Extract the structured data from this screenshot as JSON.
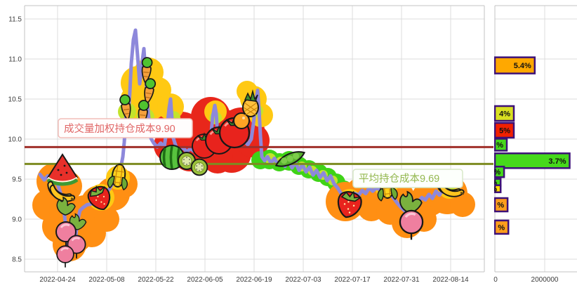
{
  "chart_data": [
    {
      "type": "line",
      "name": "holding-cost-price-line",
      "grid": true,
      "y_tick_labels": [
        "8.5",
        "9.0",
        "9.5",
        "10.0",
        "10.5",
        "11.0",
        "11.5"
      ],
      "y_tick_values": [
        8.5,
        9.0,
        9.5,
        10.0,
        10.5,
        11.0,
        11.5
      ],
      "y_range": [
        8.3,
        11.65
      ],
      "x_tick_labels": [
        "2022-04-24",
        "2022-05-08",
        "2022-05-22",
        "2022-06-05",
        "2022-06-19",
        "2022-07-03",
        "2022-07-17",
        "2022-07-31",
        "2022-08-14"
      ],
      "ref_lines": [
        {
          "name": "vwap-cost",
          "label": "成交量加权持仓成本9.90",
          "value": 9.9,
          "line_color": "#A0302A",
          "text_color": "#E06666"
        },
        {
          "name": "avg-cost",
          "label": "平均持仓成本9.69",
          "value": 9.69,
          "line_color": "#7D8B21",
          "text_color": "#94B850"
        }
      ],
      "series": [
        {
          "name": "price",
          "color": "#8D88DB",
          "points": [
            [
              57,
              9.56
            ],
            [
              63,
              9.49
            ],
            [
              68,
              9.54
            ],
            [
              74,
              9.45
            ],
            [
              79,
              9.5
            ],
            [
              84,
              9.39
            ],
            [
              88,
              9.28
            ],
            [
              92,
              9.04
            ],
            [
              95,
              8.81
            ],
            [
              98,
              8.62
            ],
            [
              101,
              8.74
            ],
            [
              104,
              8.61
            ],
            [
              107,
              8.71
            ],
            [
              110,
              8.96
            ],
            [
              114,
              9.11
            ],
            [
              119,
              9.15
            ],
            [
              124,
              9.18
            ],
            [
              130,
              9.19
            ],
            [
              136,
              9.22
            ],
            [
              142,
              9.26
            ],
            [
              149,
              9.3
            ],
            [
              156,
              9.38
            ],
            [
              162,
              9.47
            ],
            [
              169,
              9.54
            ],
            [
              172,
              9.64
            ],
            [
              175,
              9.78
            ],
            [
              177,
              9.96
            ],
            [
              179,
              10.22
            ],
            [
              181,
              10.43
            ],
            [
              183,
              10.32
            ],
            [
              185,
              10.59
            ],
            [
              187,
              10.94
            ],
            [
              190,
              11.24
            ],
            [
              193,
              11.36
            ],
            [
              196,
              11.04
            ],
            [
              199,
              10.69
            ],
            [
              202,
              10.92
            ],
            [
              205,
              11.13
            ],
            [
              207,
              10.87
            ],
            [
              209,
              10.61
            ],
            [
              211,
              10.34
            ],
            [
              213,
              10.17
            ],
            [
              215,
              10.01
            ],
            [
              219,
              9.95
            ],
            [
              224,
              9.9
            ],
            [
              229,
              9.95
            ],
            [
              234,
              9.9
            ],
            [
              238,
              10.15
            ],
            [
              241,
              10.39
            ],
            [
              243,
              10.5
            ],
            [
              245,
              10.25
            ],
            [
              247,
              10.01
            ],
            [
              251,
              9.9
            ],
            [
              256,
              9.86
            ],
            [
              261,
              9.89
            ],
            [
              266,
              9.84
            ],
            [
              271,
              9.88
            ],
            [
              276,
              9.85
            ],
            [
              281,
              9.89
            ],
            [
              286,
              9.86
            ],
            [
              291,
              9.91
            ],
            [
              296,
              9.88
            ],
            [
              300,
              10.0
            ],
            [
              303,
              10.28
            ],
            [
              306,
              10.42
            ],
            [
              308,
              10.32
            ],
            [
              310,
              10.06
            ],
            [
              313,
              9.9
            ],
            [
              318,
              9.96
            ],
            [
              323,
              9.91
            ],
            [
              328,
              9.97
            ],
            [
              333,
              9.92
            ],
            [
              338,
              9.97
            ],
            [
              343,
              9.92
            ],
            [
              348,
              9.98
            ],
            [
              353,
              9.93
            ],
            [
              358,
              10.0
            ],
            [
              361,
              10.19
            ],
            [
              364,
              10.43
            ],
            [
              367,
              10.61
            ],
            [
              369,
              10.37
            ],
            [
              371,
              10.04
            ],
            [
              373,
              9.78
            ],
            [
              377,
              9.73
            ],
            [
              381,
              9.78
            ],
            [
              386,
              9.7
            ],
            [
              391,
              9.76
            ],
            [
              396,
              9.68
            ],
            [
              401,
              9.74
            ],
            [
              406,
              9.66
            ],
            [
              411,
              9.73
            ],
            [
              416,
              9.64
            ],
            [
              421,
              9.71
            ],
            [
              426,
              9.61
            ],
            [
              431,
              9.68
            ],
            [
              436,
              9.59
            ],
            [
              441,
              9.65
            ],
            [
              446,
              9.55
            ],
            [
              451,
              9.61
            ],
            [
              456,
              9.52
            ],
            [
              461,
              9.58
            ],
            [
              466,
              9.48
            ],
            [
              471,
              9.54
            ],
            [
              476,
              9.44
            ],
            [
              481,
              9.39
            ],
            [
              486,
              9.32
            ],
            [
              491,
              9.26
            ],
            [
              496,
              9.21
            ],
            [
              501,
              9.26
            ],
            [
              506,
              9.32
            ],
            [
              511,
              9.3
            ],
            [
              516,
              9.36
            ],
            [
              521,
              9.32
            ],
            [
              526,
              9.39
            ],
            [
              531,
              9.35
            ],
            [
              536,
              9.39
            ],
            [
              541,
              9.37
            ],
            [
              546,
              9.4
            ],
            [
              551,
              9.38
            ],
            [
              556,
              9.32
            ],
            [
              561,
              9.26
            ],
            [
              566,
              9.2
            ],
            [
              571,
              9.15
            ],
            [
              576,
              9.11
            ],
            [
              581,
              9.07
            ],
            [
              586,
              9.1
            ],
            [
              591,
              9.16
            ],
            [
              596,
              9.22
            ],
            [
              601,
              9.27
            ],
            [
              606,
              9.24
            ],
            [
              611,
              9.31
            ],
            [
              616,
              9.26
            ],
            [
              621,
              9.35
            ],
            [
              626,
              9.3
            ],
            [
              631,
              9.37
            ],
            [
              635,
              9.33
            ]
          ]
        }
      ],
      "decoration_icons": [
        "watermelon-slice",
        "banana-bunch",
        "radish",
        "radish-leaves",
        "strawberry",
        "corn",
        "carrot-with-pea",
        "whole-watermelon",
        "kiwi",
        "tomato",
        "orange",
        "pineapple",
        "peapod"
      ]
    },
    {
      "type": "bar",
      "name": "volume-by-price",
      "orientation": "horizontal",
      "x_tick_labels": [
        "0",
        "2000000"
      ],
      "x_gridline_value": 2000000,
      "bars": [
        {
          "price": 10.92,
          "volume": 1600000,
          "label": "5.4%",
          "color": "#FFA800",
          "thickness": 23
        },
        {
          "price": 10.32,
          "volume": 760000,
          "label": "4%",
          "color": "#D9E021",
          "thickness": 21
        },
        {
          "price": 10.11,
          "volume": 760000,
          "label": "5%",
          "color": "#F22000",
          "thickness": 21
        },
        {
          "price": 9.93,
          "volume": 480000,
          "label": "%",
          "color": "#46D81C",
          "thickness": 17
        },
        {
          "price": 9.73,
          "volume": 3000000,
          "label": "3.7%",
          "color": "#46D81C",
          "thickness": 21
        },
        {
          "price": 9.59,
          "volume": 370000,
          "label": "%",
          "color": "#46D81C",
          "thickness": 15
        },
        {
          "price": 9.46,
          "volume": 230000,
          "label": "%",
          "color": "#46D81C",
          "thickness": 10
        },
        {
          "price": 9.38,
          "volume": 230000,
          "label": "%",
          "color": "#FFD900",
          "thickness": 10
        },
        {
          "price": 9.18,
          "volume": 510000,
          "label": "%",
          "color": "#FF9D1C",
          "thickness": 19
        },
        {
          "price": 8.9,
          "volume": 540000,
          "label": "%",
          "color": "#FF9D1C",
          "thickness": 19
        }
      ],
      "bar_border_color": "#3D1178"
    }
  ]
}
